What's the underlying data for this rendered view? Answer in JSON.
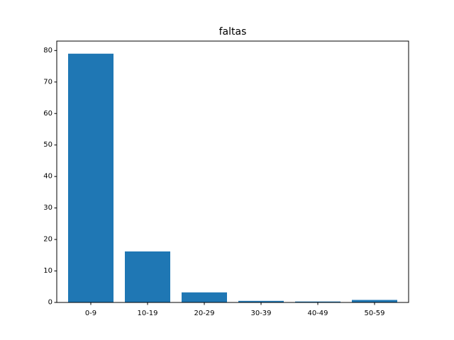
{
  "chart_data": {
    "type": "bar",
    "title": "faltas",
    "xlabel": "",
    "ylabel": "",
    "categories": [
      "0-9",
      "10-19",
      "20-29",
      "30-39",
      "40-49",
      "50-59"
    ],
    "values": [
      79,
      16.2,
      3.2,
      0.5,
      0.3,
      0.8
    ],
    "ylim": [
      0,
      83
    ],
    "yticks": [
      0,
      10,
      20,
      30,
      40,
      50,
      60,
      70,
      80
    ],
    "grid": false,
    "bar_color": "#1f77b4"
  }
}
